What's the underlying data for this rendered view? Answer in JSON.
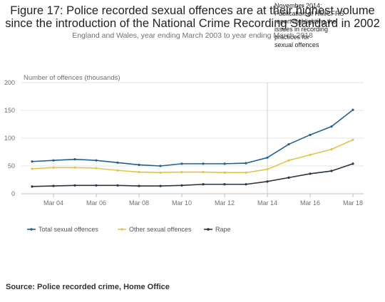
{
  "chart_data": {
    "type": "line",
    "title": "Figure 17: Police recorded sexual offences are at their highest volume since the introduction of the National Crime Recording Standard in 2002",
    "subtitle": "England and Wales, year ending March 2003 to year ending March 2018",
    "ylabel": "Number of offences (thousands)",
    "xlabel": "",
    "ylim": [
      0,
      200
    ],
    "yticks": [
      0,
      50,
      100,
      150,
      200
    ],
    "x": [
      2003,
      2004,
      2005,
      2006,
      2007,
      2008,
      2009,
      2010,
      2011,
      2012,
      2013,
      2014,
      2015,
      2016,
      2017,
      2018
    ],
    "xtick_values": [
      2004,
      2006,
      2008,
      2010,
      2012,
      2014,
      2016,
      2018
    ],
    "xtick_labels": [
      "Mar 04",
      "Mar 06",
      "Mar 08",
      "Mar 10",
      "Mar 12",
      "Mar 14",
      "Mar 16",
      "Mar 18"
    ],
    "grid": "horizontal",
    "legend_position": "bottom-left",
    "series": [
      {
        "name": "Total sexual offences",
        "color": "#206095",
        "values": [
          58,
          60,
          62,
          60,
          56,
          52,
          50,
          54,
          54,
          54,
          55,
          65,
          89,
          106,
          121,
          151
        ]
      },
      {
        "name": "Other sexual offences",
        "color": "#e0c54d",
        "values": [
          45,
          47,
          47,
          46,
          42,
          39,
          38,
          39,
          39,
          38,
          38,
          44,
          60,
          70,
          80,
          97
        ]
      },
      {
        "name": "Rape",
        "color": "#27343f",
        "values": [
          13,
          14,
          15,
          15,
          15,
          14,
          14,
          15,
          17,
          17,
          17,
          22,
          29,
          36,
          41,
          54
        ]
      }
    ],
    "annotation": {
      "x": 2014,
      "text": [
        "November 2014:",
        "Publication of HMICFRS",
        "report highlighting the",
        "issues in recording",
        "practices for",
        "sexual offences"
      ]
    }
  },
  "source": "Source: Police recorded crime, Home Office"
}
